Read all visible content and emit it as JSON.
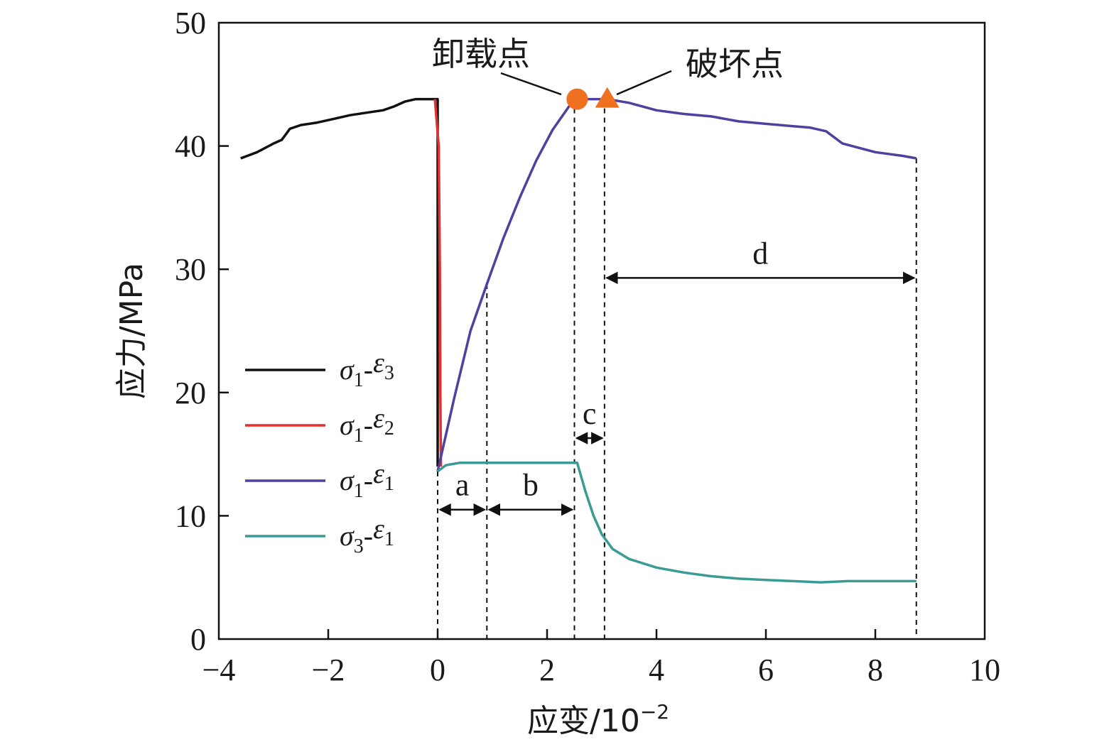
{
  "chart_data": {
    "type": "line",
    "title": "",
    "xlabel": "应变/10",
    "xlabel_sup": "−2",
    "ylabel": "应力/MPa",
    "xlim": [
      -4,
      10
    ],
    "ylim": [
      0,
      50
    ],
    "x_ticks": [
      -4,
      -2,
      0,
      2,
      4,
      6,
      8,
      10
    ],
    "x_tick_labels": [
      "−4",
      "−2",
      "0",
      "2",
      "4",
      "6",
      "8",
      "10"
    ],
    "y_ticks": [
      0,
      10,
      20,
      30,
      40,
      50
    ],
    "y_tick_labels": [
      "0",
      "10",
      "20",
      "30",
      "40",
      "50"
    ],
    "grid": false,
    "legend_position": "left-center",
    "series": [
      {
        "name": "σ1-ε3",
        "sym": "σ",
        "sub1": "1",
        "sym2": "ε",
        "sub2": "3",
        "color": "#111111",
        "points": [
          [
            -3.6,
            39.0
          ],
          [
            -3.3,
            39.5
          ],
          [
            -3.0,
            40.2
          ],
          [
            -2.85,
            40.5
          ],
          [
            -2.7,
            41.4
          ],
          [
            -2.5,
            41.7
          ],
          [
            -2.2,
            41.9
          ],
          [
            -1.9,
            42.2
          ],
          [
            -1.6,
            42.5
          ],
          [
            -1.3,
            42.7
          ],
          [
            -1.0,
            42.9
          ],
          [
            -0.8,
            43.2
          ],
          [
            -0.6,
            43.6
          ],
          [
            -0.4,
            43.8
          ],
          [
            -0.05,
            43.8
          ],
          [
            0.0,
            43.8
          ],
          [
            0.0,
            14.0
          ]
        ]
      },
      {
        "name": "σ1-ε2",
        "sym": "σ",
        "sub1": "1",
        "sym2": "ε",
        "sub2": "2",
        "color": "#e03030",
        "points": [
          [
            -0.05,
            43.8
          ],
          [
            0.02,
            40.0
          ],
          [
            0.04,
            30.0
          ],
          [
            0.05,
            20.0
          ],
          [
            0.06,
            14.0
          ]
        ]
      },
      {
        "name": "σ1-ε1",
        "sym": "σ",
        "sub1": "1",
        "sym2": "ε",
        "sub2": "1",
        "color": "#5040a0",
        "points": [
          [
            0.0,
            13.6
          ],
          [
            0.3,
            19.5
          ],
          [
            0.6,
            25.0
          ],
          [
            0.9,
            28.8
          ],
          [
            1.2,
            32.5
          ],
          [
            1.5,
            35.8
          ],
          [
            1.8,
            38.8
          ],
          [
            2.1,
            41.3
          ],
          [
            2.4,
            43.2
          ],
          [
            2.55,
            43.8
          ],
          [
            3.1,
            43.8
          ],
          [
            3.5,
            43.5
          ],
          [
            4.0,
            42.9
          ],
          [
            4.5,
            42.6
          ],
          [
            5.0,
            42.4
          ],
          [
            5.5,
            42.0
          ],
          [
            6.0,
            41.8
          ],
          [
            6.5,
            41.6
          ],
          [
            6.8,
            41.5
          ],
          [
            7.1,
            41.2
          ],
          [
            7.4,
            40.2
          ],
          [
            8.0,
            39.5
          ],
          [
            8.5,
            39.2
          ],
          [
            8.75,
            39.0
          ]
        ]
      },
      {
        "name": "σ3-ε1",
        "sym": "σ",
        "sub1": "3",
        "sym2": "ε",
        "sub2": "1",
        "color": "#3a9a94",
        "points": [
          [
            0.0,
            13.6
          ],
          [
            0.15,
            14.1
          ],
          [
            0.4,
            14.3
          ],
          [
            1.0,
            14.3
          ],
          [
            2.0,
            14.3
          ],
          [
            2.55,
            14.3
          ],
          [
            2.7,
            12.0
          ],
          [
            2.85,
            10.0
          ],
          [
            3.0,
            8.5
          ],
          [
            3.2,
            7.3
          ],
          [
            3.5,
            6.5
          ],
          [
            4.0,
            5.8
          ],
          [
            4.5,
            5.4
          ],
          [
            5.0,
            5.1
          ],
          [
            5.5,
            4.9
          ],
          [
            6.0,
            4.8
          ],
          [
            6.5,
            4.7
          ],
          [
            7.0,
            4.6
          ],
          [
            7.5,
            4.7
          ],
          [
            8.0,
            4.7
          ],
          [
            8.75,
            4.7
          ]
        ]
      }
    ],
    "markers": [
      {
        "name": "卸载点",
        "shape": "circle",
        "x": 2.55,
        "y": 43.8,
        "color": "#f07020"
      },
      {
        "name": "破坏点",
        "shape": "triangle",
        "x": 3.1,
        "y": 43.8,
        "color": "#f07020"
      }
    ],
    "annotations": {
      "unload_label": "卸载点",
      "failure_label": "破坏点"
    },
    "stage_boundaries": [
      0.0,
      0.9,
      2.5,
      3.05,
      8.75
    ],
    "segments": [
      {
        "label": "a",
        "x_from": 0.0,
        "x_to": 0.9,
        "y": 10.5
      },
      {
        "label": "b",
        "x_from": 0.9,
        "x_to": 2.5,
        "y": 10.5
      },
      {
        "label": "c",
        "x_from": 2.5,
        "x_to": 3.05,
        "y": 16.3
      },
      {
        "label": "d",
        "x_from": 3.05,
        "x_to": 8.75,
        "y": 29.3
      }
    ]
  }
}
